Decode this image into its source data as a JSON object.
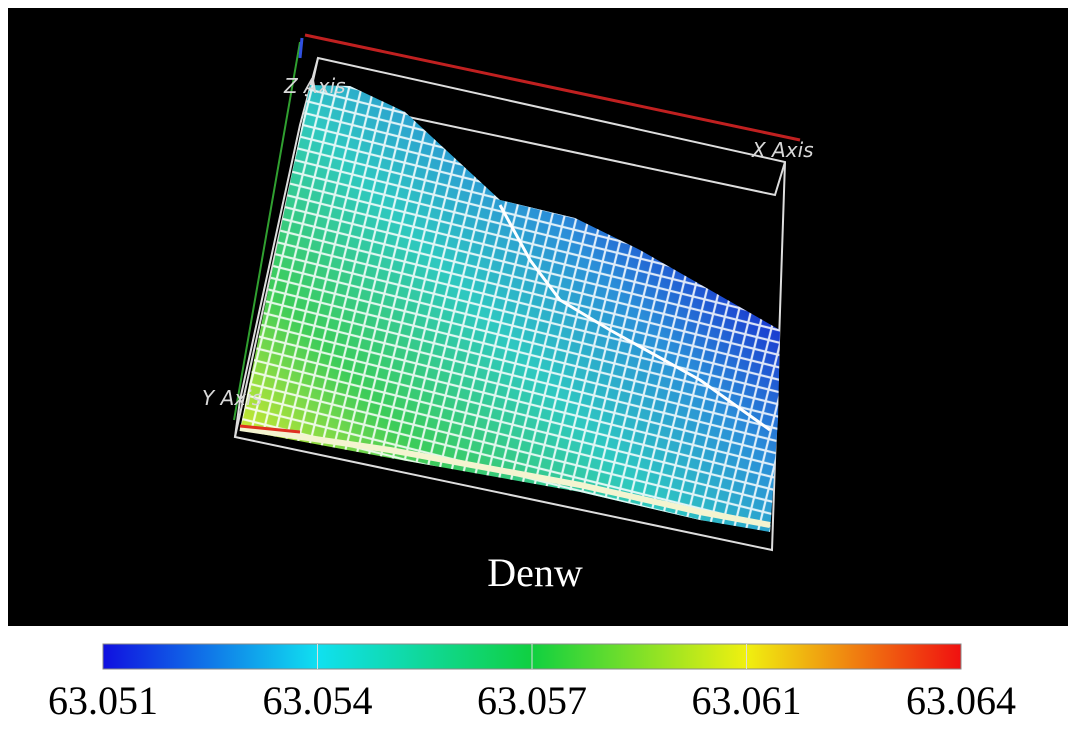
{
  "axes": {
    "x": "X Axis",
    "y": "Y Axis",
    "z": "Z Axis"
  },
  "colorbar": {
    "title": "Denw",
    "ticks": [
      "63.051",
      "63.054",
      "63.057",
      "63.061",
      "63.064"
    ]
  }
}
